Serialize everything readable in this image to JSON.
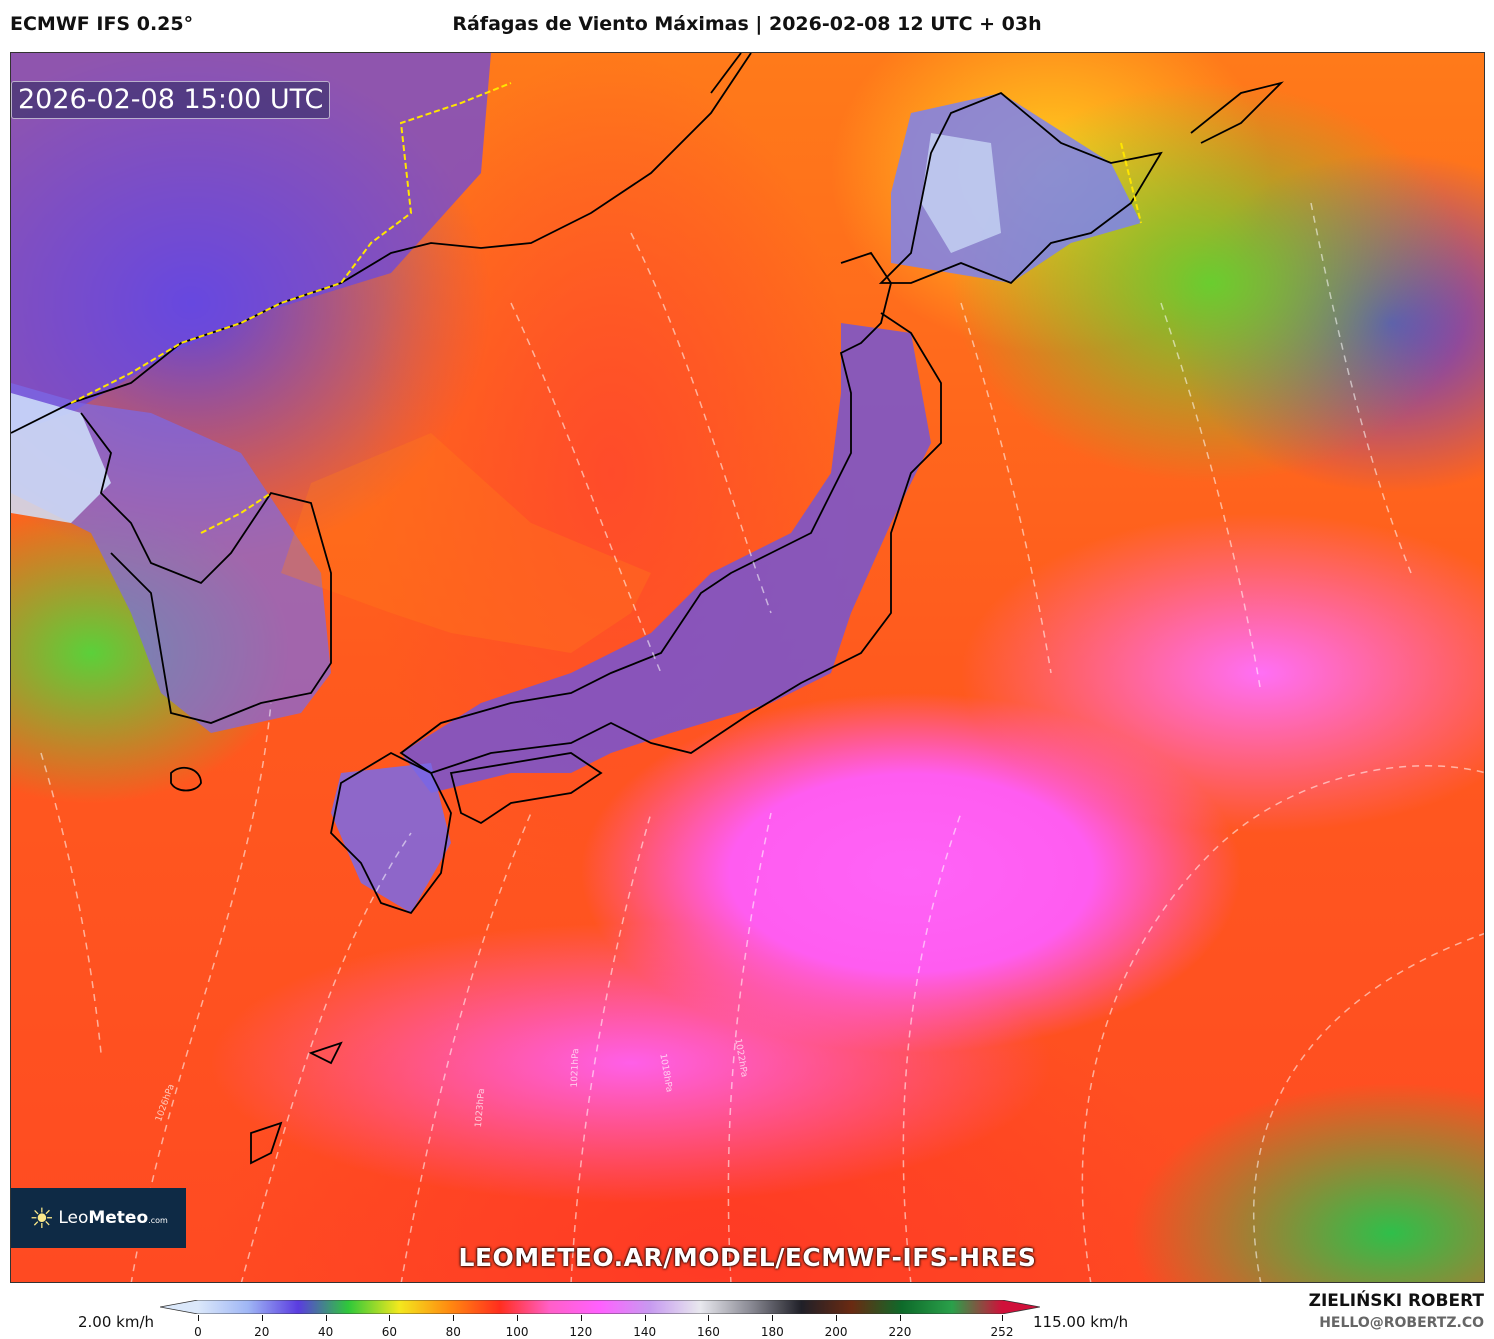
{
  "header": {
    "model": "ECMWF IFS 0.25°",
    "title": "Ráfagas de Viento Máximas | 2026-02-08 12 UTC + 03h"
  },
  "map": {
    "valid_time": "2026-02-08 15:00 UTC",
    "logo_text": "LeoMeteo.com",
    "url_watermark": "LEOMETEO.AR/MODEL/ECMWF-IFS-HRES",
    "isobar_labels": [
      "1026hPa",
      "1023hPa",
      "1021hPa",
      "1018hPa",
      "1022hPa"
    ]
  },
  "colorbar": {
    "min_label": "2.00 km/h",
    "max_label": "115.00 km/h",
    "ticks": [
      "0",
      "20",
      "40",
      "60",
      "80",
      "100",
      "120",
      "140",
      "160",
      "180",
      "200",
      "220",
      "252"
    ],
    "colors": [
      "#dbe8fa",
      "#9fb6f5",
      "#5a3ce0",
      "#2fc83a",
      "#f3e81e",
      "#ff8a10",
      "#ff2e1e",
      "#ff5fc8",
      "#ff60ff",
      "#c79af0",
      "#e8e8ee",
      "#8a8a94",
      "#202028",
      "#6a2a12",
      "#0e6a2a",
      "#2aa04a",
      "#d0103a"
    ]
  },
  "credits": {
    "author": "ZIELIŃSKI ROBERT",
    "email": "HELLO@ROBERTZ.CO"
  }
}
